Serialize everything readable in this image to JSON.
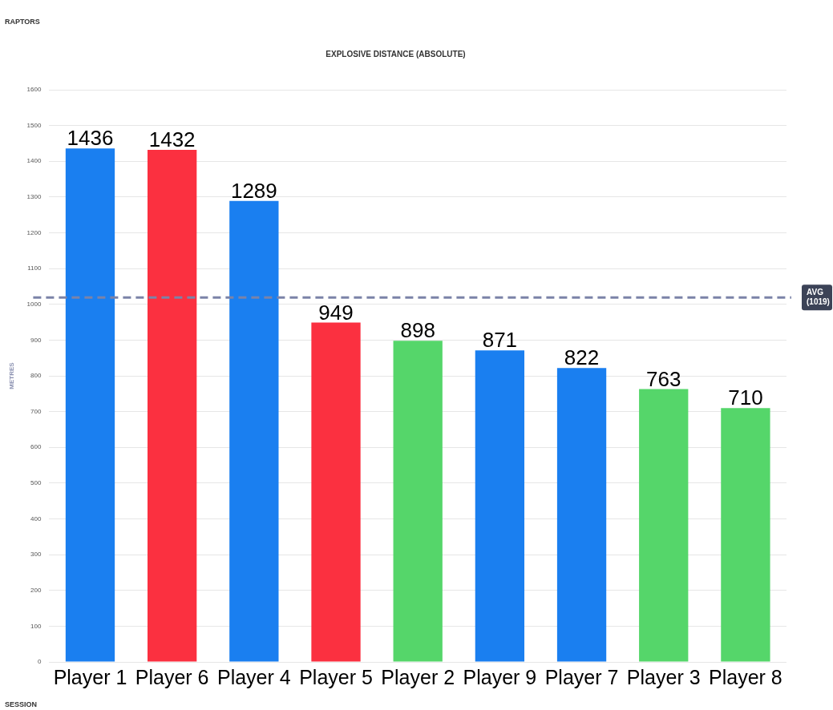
{
  "chart_data": {
    "type": "bar",
    "title": "EXPLOSIVE DISTANCE (ABSOLUTE)",
    "ylabel": "METRES",
    "categories": [
      "Player 1",
      "Player 6",
      "Player 4",
      "Player 5",
      "Player 2",
      "Player 9",
      "Player 7",
      "Player 3",
      "Player 8"
    ],
    "values": [
      1436,
      1432,
      1289,
      949,
      898,
      871,
      822,
      763,
      710
    ],
    "colors": [
      "#1a7ff0",
      "#fb3040",
      "#1a7ff0",
      "#fb3040",
      "#55d66a",
      "#1a7ff0",
      "#1a7ff0",
      "#55d66a",
      "#55d66a"
    ],
    "ylim": [
      0,
      1600
    ],
    "yticks": [
      0,
      100,
      200,
      300,
      400,
      500,
      600,
      700,
      800,
      900,
      1000,
      1100,
      1200,
      1300,
      1400,
      1500,
      1600
    ],
    "grid": "y",
    "legend": false,
    "data_labels": true,
    "ref_lines": [
      {
        "axis": "y",
        "value": 1019,
        "label": "AVG (1019)",
        "color": "#7b83a8",
        "line_style": "dashed"
      }
    ],
    "annotations": [
      "RAPTORS",
      "SESSION"
    ]
  }
}
